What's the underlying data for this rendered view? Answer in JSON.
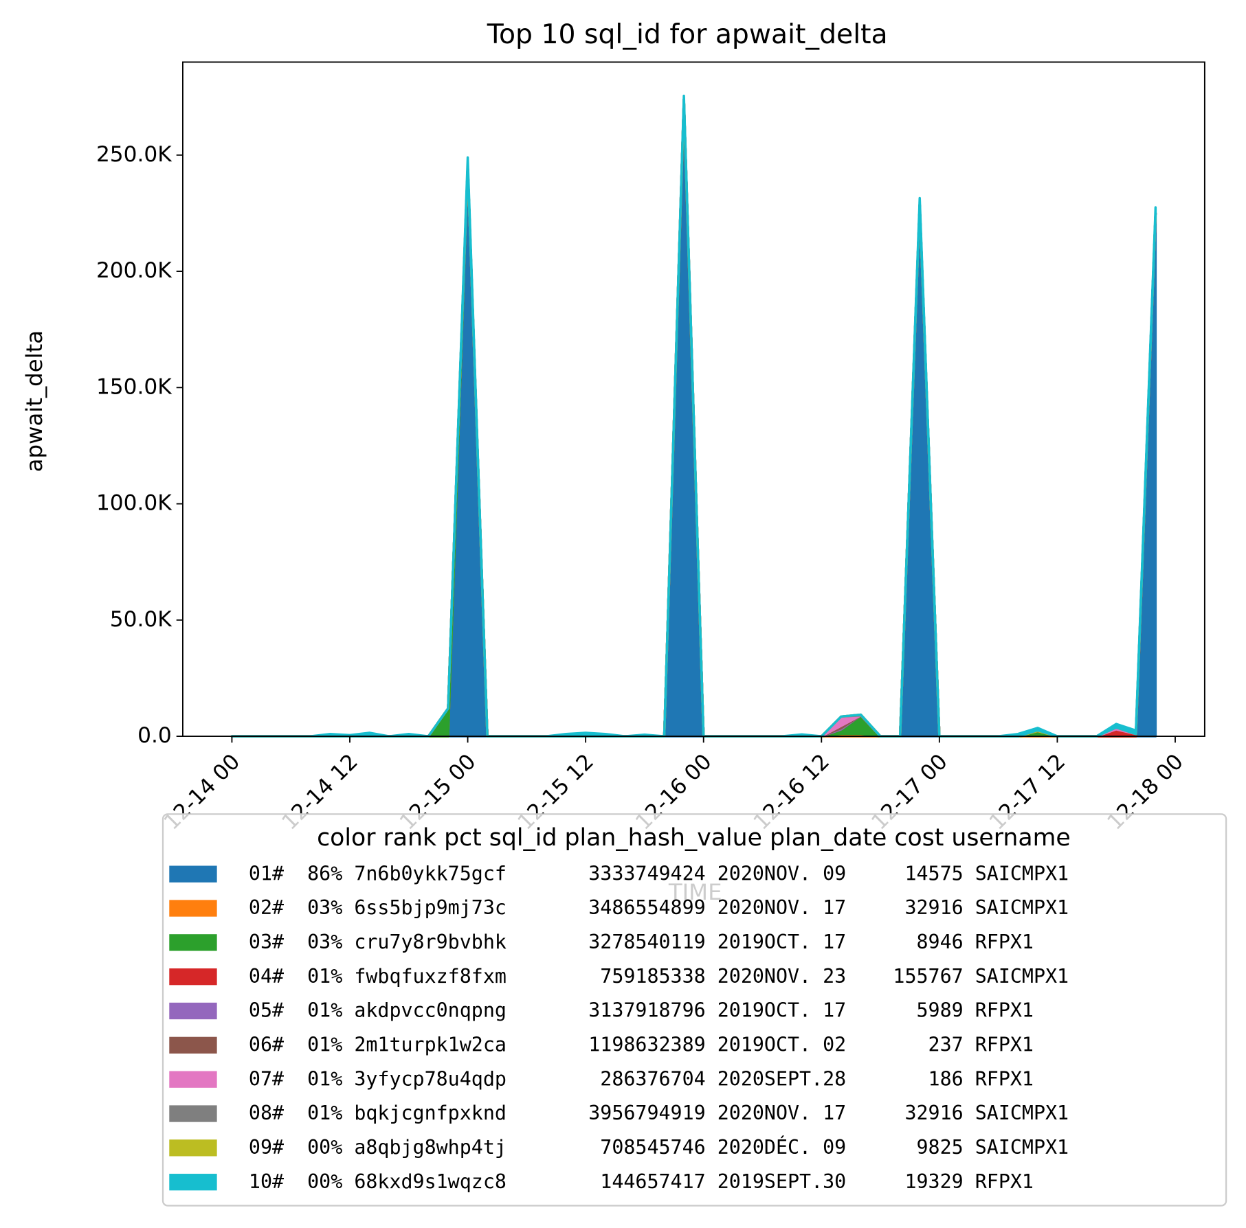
{
  "chart_data": {
    "type": "stacked_area",
    "title": "Top 10 sql_id for apwait_delta",
    "xlabel": "TIME",
    "ylabel": "apwait_delta",
    "legend_title": "color rank pct sql_id plan_hash_value plan_date cost username",
    "legend_position": "below",
    "x": [
      "12-14 00",
      "12-14 02",
      "12-14 04",
      "12-14 06",
      "12-14 08",
      "12-14 10",
      "12-14 12",
      "12-14 14",
      "12-14 16",
      "12-14 18",
      "12-14 20",
      "12-14 22",
      "12-15 00",
      "12-15 02",
      "12-15 04",
      "12-15 06",
      "12-15 08",
      "12-15 10",
      "12-15 12",
      "12-15 14",
      "12-15 16",
      "12-15 18",
      "12-15 20",
      "12-15 22",
      "12-16 00",
      "12-16 02",
      "12-16 04",
      "12-16 06",
      "12-16 08",
      "12-16 10",
      "12-16 12",
      "12-16 14",
      "12-16 16",
      "12-16 18",
      "12-16 20",
      "12-16 22",
      "12-17 00",
      "12-17 02",
      "12-17 04",
      "12-17 06",
      "12-17 08",
      "12-17 10",
      "12-17 12",
      "12-17 14",
      "12-17 16",
      "12-17 18",
      "12-17 20",
      "12-17 22"
    ],
    "xlim": [
      "12-13 19",
      "12-18 03"
    ],
    "xticks": [
      "12-14 00",
      "12-14 12",
      "12-15 00",
      "12-15 12",
      "12-16 00",
      "12-16 12",
      "12-17 00",
      "12-17 12",
      "12-18 00"
    ],
    "ylim": [
      0,
      290000
    ],
    "yticks": [
      {
        "value": 0,
        "label": "0.0"
      },
      {
        "value": 50000,
        "label": "50.0K"
      },
      {
        "value": 100000,
        "label": "100.0K"
      },
      {
        "value": 150000,
        "label": "150.0K"
      },
      {
        "value": 200000,
        "label": "200.0K"
      },
      {
        "value": 250000,
        "label": "250.0K"
      }
    ],
    "series": [
      {
        "name": "01#  86% 7n6b0ykk75gcf       3333749424 2020NOV. 09     14575 SAICMPX1",
        "color": "#1f77b4",
        "values": [
          0,
          0,
          0,
          0,
          0,
          0,
          0,
          0,
          0,
          0,
          0,
          0,
          246000,
          0,
          0,
          0,
          0,
          0,
          0,
          0,
          0,
          0,
          0,
          272000,
          0,
          0,
          0,
          0,
          0,
          0,
          0,
          0,
          0,
          0,
          0,
          229000,
          0,
          0,
          0,
          0,
          0,
          0,
          0,
          0,
          0,
          0,
          0,
          225000
        ]
      },
      {
        "name": "02#  03% 6ss5bjp9mj73c       3486554899 2020NOV. 17     32916 SAICMPX1",
        "color": "#ff7f0e",
        "values": [
          0,
          0,
          0,
          0,
          0,
          0,
          0,
          0,
          0,
          0,
          0,
          0,
          0,
          0,
          0,
          0,
          0,
          0,
          0,
          0,
          0,
          0,
          0,
          0,
          0,
          0,
          0,
          0,
          0,
          0,
          0,
          1000,
          1000,
          0,
          0,
          0,
          0,
          0,
          0,
          0,
          0,
          800,
          0,
          0,
          0,
          0,
          0,
          0
        ]
      },
      {
        "name": "03#  03% cru7y8r9bvbhk       3278540119 2019OCT. 17      8946 RFPX1",
        "color": "#2ca02c",
        "values": [
          0,
          0,
          0,
          0,
          0,
          0,
          0,
          0,
          0,
          0,
          0,
          12000,
          0,
          0,
          0,
          0,
          0,
          0,
          0,
          0,
          0,
          0,
          0,
          2000,
          0,
          0,
          0,
          0,
          0,
          0,
          0,
          2000,
          8000,
          0,
          0,
          0,
          0,
          0,
          0,
          0,
          0,
          1500,
          0,
          0,
          0,
          0,
          0,
          0
        ]
      },
      {
        "name": "04#  01% fwbqfuxzf8fxm        759185338 2020NOV. 23    155767 SAICMPX1",
        "color": "#d62728",
        "values": [
          0,
          0,
          0,
          0,
          0,
          0,
          0,
          0,
          0,
          0,
          0,
          0,
          0,
          0,
          0,
          0,
          0,
          0,
          0,
          0,
          0,
          0,
          0,
          0,
          0,
          0,
          0,
          0,
          0,
          0,
          0,
          0,
          0,
          0,
          0,
          0,
          0,
          0,
          0,
          0,
          0,
          0,
          0,
          0,
          0,
          3000,
          1000,
          0
        ]
      },
      {
        "name": "05#  01% akdpvcc0nqpng       3137918796 2019OCT. 17      5989 RFPX1",
        "color": "#9467bd",
        "values": [
          0,
          0,
          0,
          0,
          0,
          0,
          0,
          0,
          0,
          0,
          0,
          0,
          0,
          0,
          0,
          0,
          0,
          0,
          0,
          0,
          0,
          0,
          0,
          0,
          0,
          0,
          0,
          0,
          0,
          0,
          0,
          500,
          0,
          0,
          0,
          0,
          0,
          0,
          0,
          0,
          0,
          0,
          0,
          0,
          0,
          0,
          0,
          0
        ]
      },
      {
        "name": "06#  01% 2m1turpk1w2ca       1198632389 2019OCT. 02       237 RFPX1",
        "color": "#8c564b",
        "values": [
          0,
          0,
          0,
          0,
          0,
          0,
          0,
          0,
          0,
          0,
          0,
          0,
          0,
          0,
          0,
          0,
          0,
          0,
          0,
          0,
          0,
          0,
          0,
          0,
          0,
          0,
          0,
          0,
          0,
          0,
          0,
          1000,
          0,
          0,
          0,
          0,
          0,
          0,
          0,
          0,
          0,
          0,
          0,
          0,
          0,
          0,
          0,
          0
        ]
      },
      {
        "name": "07#  01% 3yfycp78u4qdp        286376704 2020SEPT.28       186 RFPX1",
        "color": "#e377c2",
        "values": [
          0,
          0,
          0,
          0,
          0,
          0,
          0,
          0,
          0,
          0,
          0,
          0,
          0,
          0,
          0,
          0,
          0,
          0,
          0,
          0,
          0,
          0,
          0,
          0,
          0,
          0,
          0,
          0,
          0,
          0,
          0,
          4000,
          0,
          0,
          0,
          0,
          0,
          0,
          0,
          0,
          0,
          0,
          0,
          0,
          0,
          800,
          0,
          0
        ]
      },
      {
        "name": "08#  01% bqkjcgnfpxknd       3956794919 2020NOV. 17     32916 SAICMPX1",
        "color": "#7f7f7f",
        "values": [
          0,
          0,
          0,
          0,
          0,
          0,
          0,
          0,
          0,
          0,
          0,
          0,
          0,
          0,
          0,
          0,
          0,
          0,
          0,
          0,
          0,
          0,
          0,
          0,
          0,
          0,
          0,
          0,
          0,
          0,
          0,
          0,
          300,
          0,
          0,
          0,
          0,
          0,
          0,
          0,
          0,
          0,
          0,
          0,
          0,
          0,
          0,
          0
        ]
      },
      {
        "name": "09#  00% a8qbjg8whp4tj        708545746 2020DÉC. 09      9825 SAICMPX1",
        "color": "#bcbd22",
        "values": [
          0,
          0,
          0,
          0,
          0,
          0,
          0,
          0,
          0,
          0,
          0,
          0,
          0,
          0,
          0,
          0,
          0,
          0,
          0,
          0,
          0,
          0,
          0,
          0,
          0,
          0,
          0,
          0,
          0,
          0,
          0,
          0,
          0,
          0,
          0,
          0,
          0,
          0,
          0,
          0,
          0,
          300,
          0,
          0,
          0,
          0,
          0,
          0
        ]
      },
      {
        "name": "10#  00% 68kxd9s1wqzc8        144657417 2019SEPT.30     19329 RFPX1",
        "color": "#17becf",
        "values": [
          0,
          0,
          0,
          0,
          0,
          1000,
          500,
          1500,
          0,
          1000,
          0,
          0,
          3000,
          0,
          0,
          0,
          0,
          1000,
          1500,
          1000,
          0,
          700,
          0,
          1500,
          0,
          0,
          0,
          0,
          0,
          800,
          0,
          0,
          0,
          0,
          0,
          2500,
          0,
          0,
          0,
          0,
          1000,
          1000,
          0,
          0,
          0,
          1500,
          1500,
          2500
        ]
      }
    ]
  }
}
